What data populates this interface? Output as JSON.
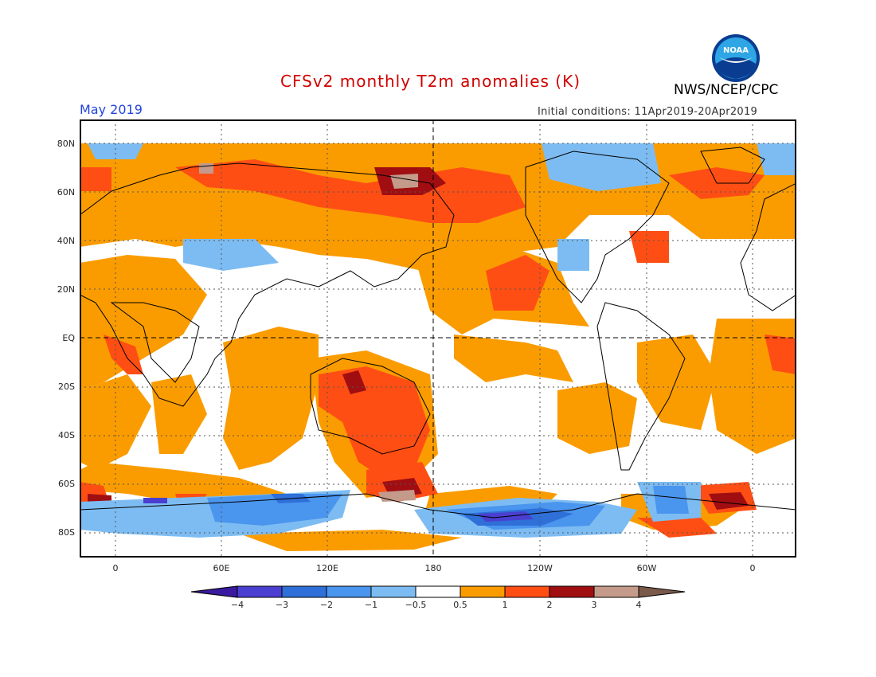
{
  "header": {
    "title": "CFSv2 monthly T2m anomalies (K)",
    "organization": "NWS/NCEP/CPC",
    "logo_text": "NOAA",
    "month": "May 2019",
    "initial_conditions": "Initial conditions: 11Apr2019-20Apr2019"
  },
  "map": {
    "lat_labels": [
      "80N",
      "60N",
      "40N",
      "20N",
      "EQ",
      "20S",
      "40S",
      "60S",
      "80S"
    ],
    "lon_labels": [
      "0",
      "60E",
      "120E",
      "180",
      "120W",
      "60W",
      "0"
    ]
  },
  "colorbar": {
    "labels": [
      "−4",
      "−3",
      "−2",
      "−1",
      "−0.5",
      "0.5",
      "1",
      "2",
      "3",
      "4"
    ],
    "colors": [
      "#3a1aa0",
      "#4a3fd0",
      "#2f6fd8",
      "#4a95ee",
      "#7dbcf2",
      "#ffffff",
      "#fa9c00",
      "#ff4e14",
      "#a00e12",
      "#c49a8a",
      "#7a5a4a"
    ]
  },
  "colors": {
    "title": "#d10000",
    "month": "#2244dd",
    "ocean_white": "#ffffff",
    "warm1": "#fa9c00",
    "warm2": "#ff4e14",
    "warm3": "#a00e12",
    "warm4": "#c49a8a",
    "cool1": "#7dbcf2",
    "cool2": "#4a95ee",
    "cool3": "#2f6fd8",
    "cool4": "#4a3fd0"
  }
}
